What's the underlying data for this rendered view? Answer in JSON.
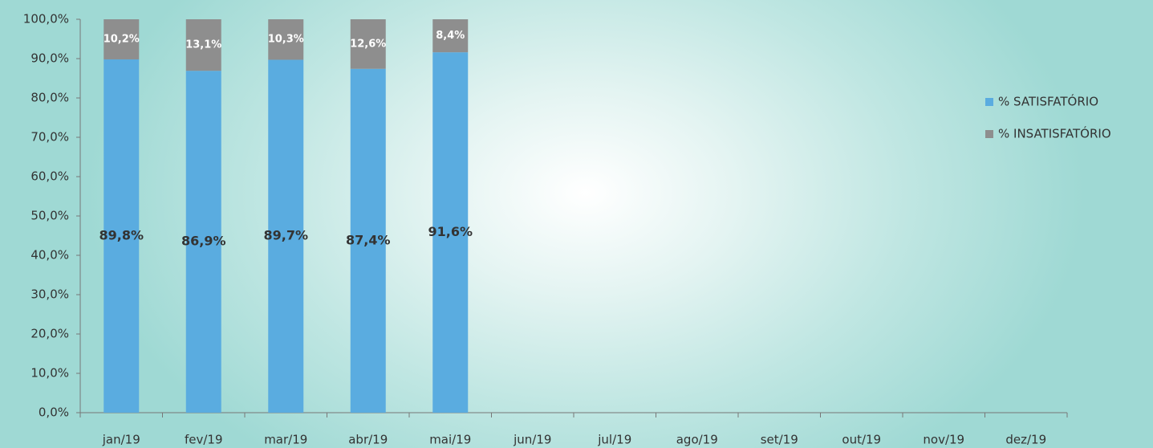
{
  "chart_data": {
    "type": "stacked_bar",
    "categories": [
      "jan/19",
      "fev/19",
      "mar/19",
      "abr/19",
      "mai/19",
      "jun/19",
      "jul/19",
      "ago/19",
      "set/19",
      "out/19",
      "nov/19",
      "dez/19"
    ],
    "series": [
      {
        "name": "% SATISFATÓRIO",
        "color": "#5aace0",
        "values": [
          89.8,
          86.9,
          89.7,
          87.4,
          91.6,
          null,
          null,
          null,
          null,
          null,
          null,
          null
        ],
        "value_labels": [
          "89,8%",
          "86,9%",
          "89,7%",
          "87,4%",
          "91,6%",
          null,
          null,
          null,
          null,
          null,
          null,
          null
        ]
      },
      {
        "name": "% INSATISFATÓRIO",
        "color": "#8e8e8e",
        "values": [
          10.2,
          13.1,
          10.3,
          12.6,
          8.4,
          null,
          null,
          null,
          null,
          null,
          null,
          null
        ],
        "value_labels": [
          "10,2%",
          "13,1%",
          "10,3%",
          "12,6%",
          "8,4%",
          null,
          null,
          null,
          null,
          null,
          null,
          null
        ]
      }
    ],
    "ylim": [
      0,
      100
    ],
    "yticks": [
      {
        "value": 0,
        "label": "0,0%"
      },
      {
        "value": 10,
        "label": "10,0%"
      },
      {
        "value": 20,
        "label": "20,0%"
      },
      {
        "value": 30,
        "label": "30,0%"
      },
      {
        "value": 40,
        "label": "40,0%"
      },
      {
        "value": 50,
        "label": "50,0%"
      },
      {
        "value": 60,
        "label": "60,0%"
      },
      {
        "value": 70,
        "label": "70,0%"
      },
      {
        "value": 80,
        "label": "80,0%"
      },
      {
        "value": 90,
        "label": "90,0%"
      },
      {
        "value": 100,
        "label": "100,0%"
      }
    ],
    "legend": "right"
  }
}
